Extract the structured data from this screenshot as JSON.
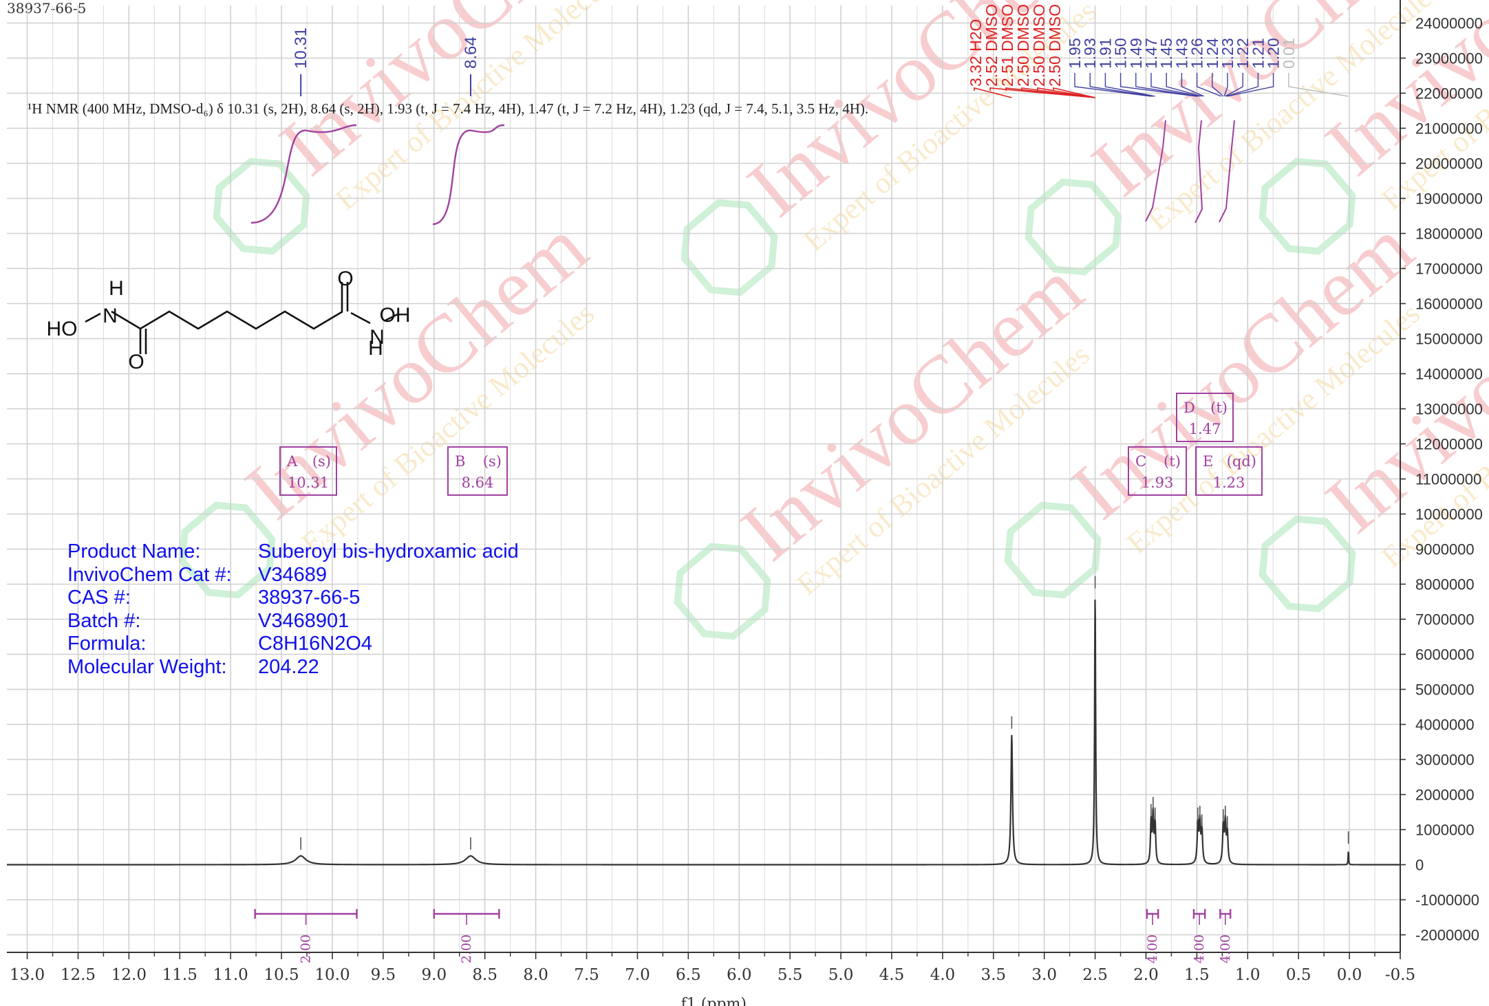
{
  "header": {
    "cas_corner": "38937-66-5"
  },
  "summary": "¹H NMR (400 MHz, DMSO-d₆) δ 10.31 (s, 2H), 8.64 (s, 2H), 1.93 (t, J = 7.4 Hz, 4H), 1.47 (t, J = 7.2 Hz, 4H), 1.23 (qd, J = 7.4, 5.1, 3.5 Hz, 4H).",
  "product": {
    "rows": [
      {
        "label": "Product Name:",
        "value": "Suberoyl bis-hydroxamic acid"
      },
      {
        "label": "InvivoChem Cat #:",
        "value": "V34689"
      },
      {
        "label": "CAS #:",
        "value": "38937-66-5"
      },
      {
        "label": "Batch #:",
        "value": "V3468901"
      },
      {
        "label": "Formula:",
        "value": "C8H16N2O4"
      },
      {
        "label": "Molecular Weight:",
        "value": "204.22"
      }
    ]
  },
  "watermark": {
    "brand": "InvivoChem",
    "tagline": "Expert of Bioactive Molecules"
  },
  "structure": {
    "atoms": [
      "HO",
      "N",
      "H",
      "O",
      "O",
      "N",
      "OH",
      "H"
    ]
  },
  "colors": {
    "spectrum": "#333333",
    "peak_label_blue": "#4040a0",
    "peak_label_red": "#dd2222",
    "integral": "#a040a0",
    "product_text": "#1010ee",
    "watermark_red": "#e0202a",
    "watermark_green": "#27c24c",
    "watermark_orange": "#e6a21b"
  },
  "chart_data": {
    "type": "line",
    "xlabel": "f1 (ppm)",
    "xlim": [
      13.2,
      -0.5
    ],
    "ylim": [
      -2500000,
      24500000
    ],
    "x_ticks": [
      "13.0",
      "12.5",
      "12.0",
      "11.5",
      "11.0",
      "10.5",
      "10.0",
      "9.5",
      "9.0",
      "8.5",
      "8.0",
      "7.5",
      "7.0",
      "6.5",
      "6.0",
      "5.5",
      "5.0",
      "4.5",
      "4.0",
      "3.5",
      "3.0",
      "2.5",
      "2.0",
      "1.5",
      "1.0",
      "0.5",
      "0.0",
      "-0.5"
    ],
    "y_ticks": [
      "-2000000",
      "-1000000",
      "0",
      "1000000",
      "2000000",
      "3000000",
      "4000000",
      "5000000",
      "6000000",
      "7000000",
      "8000000",
      "9000000",
      "10000000",
      "11000000",
      "12000000",
      "13000000",
      "14000000",
      "15000000",
      "16000000",
      "17000000",
      "18000000",
      "19000000",
      "20000000",
      "21000000",
      "22000000",
      "23000000",
      "24000000"
    ],
    "peaks": [
      {
        "ppm": 10.31,
        "height": 250000,
        "width": 0.12
      },
      {
        "ppm": 8.64,
        "height": 250000,
        "width": 0.12
      },
      {
        "ppm": 3.32,
        "height": 3700000,
        "width": 0.018
      },
      {
        "ppm": 2.5,
        "height": 7700000,
        "width": 0.012
      },
      {
        "ppm": 1.95,
        "height": 1200000,
        "width": 0.014
      },
      {
        "ppm": 1.93,
        "height": 1400000,
        "width": 0.014
      },
      {
        "ppm": 1.91,
        "height": 1100000,
        "width": 0.014
      },
      {
        "ppm": 1.49,
        "height": 1100000,
        "width": 0.016
      },
      {
        "ppm": 1.47,
        "height": 1150000,
        "width": 0.016
      },
      {
        "ppm": 1.45,
        "height": 900000,
        "width": 0.016
      },
      {
        "ppm": 1.24,
        "height": 1050000,
        "width": 0.016
      },
      {
        "ppm": 1.22,
        "height": 1150000,
        "width": 0.016
      },
      {
        "ppm": 1.2,
        "height": 850000,
        "width": 0.016
      },
      {
        "ppm": 0.01,
        "height": 420000,
        "width": 0.006
      }
    ],
    "peak_labels_blue": [
      "10.31",
      "8.64"
    ],
    "peak_labels_red": [
      "3.32 H2O",
      "2.52 DMSO",
      "2.51 DMSO",
      "2.50 DMSO",
      "2.50 DMSO",
      "2.50 DMSO"
    ],
    "peak_labels_multiplet": [
      "1.95",
      "1.93",
      "1.91",
      "1.50",
      "1.49",
      "1.47",
      "1.45",
      "1.43",
      "1.26",
      "1.24",
      "1.23",
      "1.22",
      "1.21",
      "1.20",
      "0.01"
    ],
    "multiplets": [
      {
        "letter": "A",
        "mult": "(s)",
        "shift": "10.31"
      },
      {
        "letter": "B",
        "mult": "(s)",
        "shift": "8.64"
      },
      {
        "letter": "C",
        "mult": "(t)",
        "shift": "1.93"
      },
      {
        "letter": "D",
        "mult": "(t)",
        "shift": "1.47"
      },
      {
        "letter": "E",
        "mult": "(qd)",
        "shift": "1.23"
      }
    ],
    "integrals": [
      {
        "from": 10.76,
        "to": 9.76,
        "value": "2.00"
      },
      {
        "from": 9.0,
        "to": 8.36,
        "value": "2.00"
      },
      {
        "from": 1.99,
        "to": 1.88,
        "value": "4.00"
      },
      {
        "from": 1.53,
        "to": 1.42,
        "value": "4.00"
      },
      {
        "from": 1.27,
        "to": 1.17,
        "value": "4.00"
      }
    ]
  }
}
